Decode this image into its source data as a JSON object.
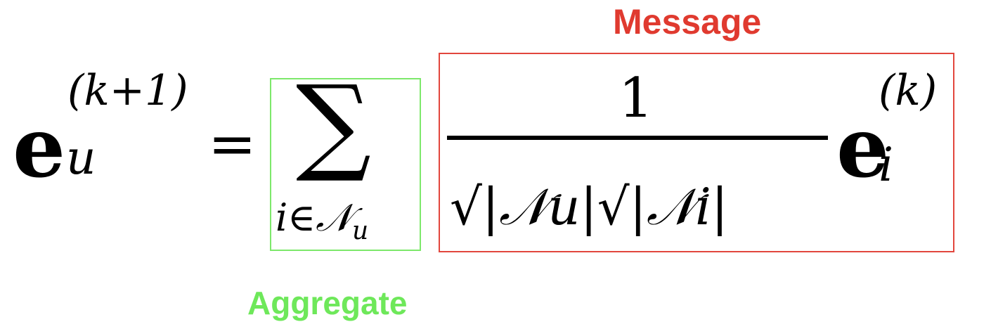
{
  "labels": {
    "message": "Message",
    "aggregate": "Aggregate"
  },
  "equation": {
    "lhs_base": "e",
    "lhs_superscript": "(k+1)",
    "lhs_subscript": "u",
    "equals": "=",
    "sum_symbol": "∑",
    "sum_index": "i∈𝒩",
    "sum_index_sub": "u",
    "numerator": "1",
    "denominator": "√|𝒩u|√|𝒩i|",
    "rhs_base": "e",
    "rhs_superscript": "(k)",
    "rhs_subscript": "i"
  },
  "colors": {
    "message": "#e03a2f",
    "aggregate": "#6ee85a"
  }
}
